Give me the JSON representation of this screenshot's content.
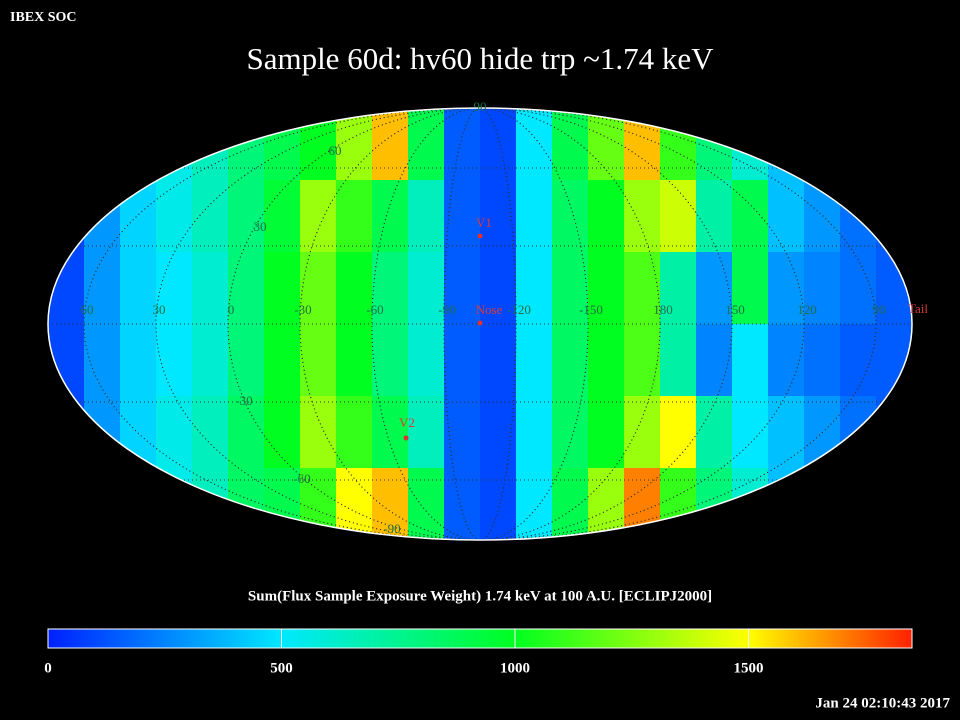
{
  "header": {
    "text": "IBEX SOC"
  },
  "title": "Sample 60d: hv60 hide trp ~1.74 keV",
  "map": {
    "projection": "mollweide",
    "values": [
      [
        100,
        300,
        450,
        550,
        650,
        800,
        900,
        1000,
        1300,
        1600,
        900,
        150,
        100,
        500,
        900,
        1200,
        1600,
        1100,
        800,
        600,
        400,
        300,
        200,
        150
      ],
      [
        100,
        300,
        450,
        550,
        650,
        800,
        950,
        1300,
        1100,
        900,
        650,
        150,
        100,
        500,
        850,
        1000,
        1300,
        1400,
        700,
        900,
        400,
        300,
        200,
        150
      ],
      [
        100,
        300,
        450,
        500,
        600,
        800,
        1000,
        1200,
        1000,
        800,
        600,
        150,
        100,
        500,
        850,
        1000,
        1150,
        700,
        300,
        900,
        300,
        250,
        200,
        150
      ],
      [
        100,
        300,
        450,
        500,
        600,
        800,
        1000,
        1200,
        1000,
        800,
        600,
        150,
        100,
        500,
        850,
        1000,
        1150,
        700,
        250,
        500,
        250,
        200,
        150,
        150
      ],
      [
        100,
        300,
        450,
        550,
        650,
        850,
        1000,
        1300,
        1100,
        900,
        650,
        150,
        100,
        500,
        850,
        1000,
        1300,
        1500,
        700,
        500,
        400,
        300,
        200,
        150
      ],
      [
        100,
        300,
        450,
        550,
        650,
        850,
        900,
        1100,
        1500,
        1600,
        900,
        150,
        100,
        500,
        900,
        1300,
        1700,
        1100,
        800,
        600,
        400,
        300,
        200,
        150
      ]
    ]
  },
  "latitude_labels": [
    90,
    60,
    30,
    -30,
    -60,
    -90
  ],
  "longitude_labels": [
    60,
    30,
    0,
    -30,
    -60,
    -90,
    -120,
    -150,
    180,
    150,
    120,
    90
  ],
  "markers": [
    {
      "label": "V1"
    },
    {
      "label": "Nose"
    },
    {
      "label": "V2"
    },
    {
      "label": "Tail"
    }
  ],
  "colorbar": {
    "title": "Sum(Flux Sample Exposure Weight)  1.74 keV at 100 A.U. [ECLIPJ2000]",
    "lim": [
      0,
      1850
    ],
    "ticks": [
      0,
      500,
      1000,
      1500
    ],
    "colors": [
      "#0020ff",
      "#00e8ff",
      "#00ff20",
      "#ffff00",
      "#ff2000"
    ]
  },
  "timestamp": "Jan 24 02:10:43 2017"
}
